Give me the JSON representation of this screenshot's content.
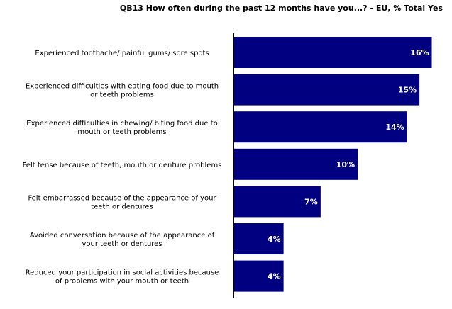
{
  "chart_data": {
    "type": "bar",
    "orientation": "horizontal",
    "title": "QB13 How often during the past 12 months have you...? - EU, % Total Yes",
    "categories": [
      [
        "Experienced toothache/ painful gums/ sore spots"
      ],
      [
        "Experienced difficulties with eating food due to mouth",
        "or teeth problems"
      ],
      [
        "Experienced difficulties in chewing/ biting food due to",
        "mouth or teeth problems"
      ],
      [
        "Felt tense because of teeth, mouth or denture problems"
      ],
      [
        "Felt embarrassed because of the appearance of your",
        "teeth or dentures"
      ],
      [
        "Avoided conversation because of the appearance of",
        "your teeth or dentures"
      ],
      [
        "Reduced your participation in social activities because",
        "of problems with your mouth or teeth"
      ]
    ],
    "values": [
      16,
      15,
      14,
      10,
      7,
      4,
      4
    ],
    "value_labels": [
      "16%",
      "15%",
      "14%",
      "10%",
      "7%",
      "4%",
      "4%"
    ],
    "xlim": [
      0,
      16.2
    ],
    "bar_color": "#000080",
    "grid": false,
    "legend": "none"
  }
}
